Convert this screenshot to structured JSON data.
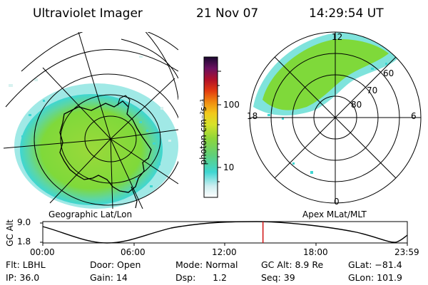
{
  "header": {
    "title": "Ultraviolet Imager",
    "date": "21 Nov 07",
    "time": "14:29:54 UT"
  },
  "colorbar": {
    "label": "photon cm⁻²s⁻¹",
    "ticks": [
      "100",
      "10"
    ],
    "scale": "log"
  },
  "left_map": {
    "caption": "Geographic Lat/Lon"
  },
  "right_map": {
    "caption": "Apex MLat/MLT",
    "mlt_labels": {
      "top": "12",
      "left": "18",
      "right": "6",
      "bottom": "0"
    },
    "lat_labels": [
      "60",
      "70",
      "80"
    ]
  },
  "orbit_plot": {
    "ylabel": "GC Alt",
    "ymax": "9.0",
    "ymin": "1.8",
    "x_ticks": [
      "00:00",
      "06:00",
      "12:00",
      "18:00",
      "23:59"
    ],
    "current_time_marker_fraction": 0.604
  },
  "info": {
    "row1": [
      "Flt: LBHL",
      "Door: Open",
      "Mode: Normal",
      "GC Alt: 8.9 Re",
      "GLat: −81.4"
    ],
    "row2": [
      "IP: 36.0",
      "Gain: 14",
      "Dsp:      1.2",
      "Seq: 39",
      "GLon: 101.9"
    ]
  },
  "colors": {
    "aurora_green": "#7fd93a",
    "aurora_cyan": "#3fd6d2",
    "marker_red": "#d01010"
  }
}
